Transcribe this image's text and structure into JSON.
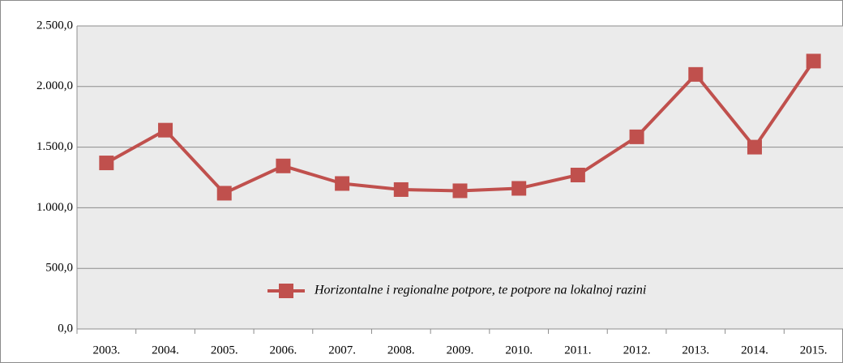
{
  "chart_data": {
    "type": "line",
    "categories": [
      "2003.",
      "2004.",
      "2005.",
      "2006.",
      "2007.",
      "2008.",
      "2009.",
      "2010.",
      "2011.",
      "2012.",
      "2013.",
      "2014.",
      "2015."
    ],
    "series": [
      {
        "name": "Horizontalne i regionalne potpore, te potpore na lokalnoj razini",
        "color": "#c0504d",
        "values": [
          1370,
          1640,
          1120,
          1345,
          1200,
          1150,
          1140,
          1160,
          1270,
          1585,
          2100,
          1500,
          2210
        ]
      }
    ],
    "ylim": [
      0,
      2500
    ],
    "yticks": [
      {
        "value": 0,
        "label": "0,0"
      },
      {
        "value": 500,
        "label": "500,0"
      },
      {
        "value": 1000,
        "label": "1.000,0"
      },
      {
        "value": 1500,
        "label": "1.500,0"
      },
      {
        "value": 2000,
        "label": "2.000,0"
      },
      {
        "value": 2500,
        "label": "2.500,0"
      }
    ],
    "grid": true,
    "legend": "lower right"
  }
}
